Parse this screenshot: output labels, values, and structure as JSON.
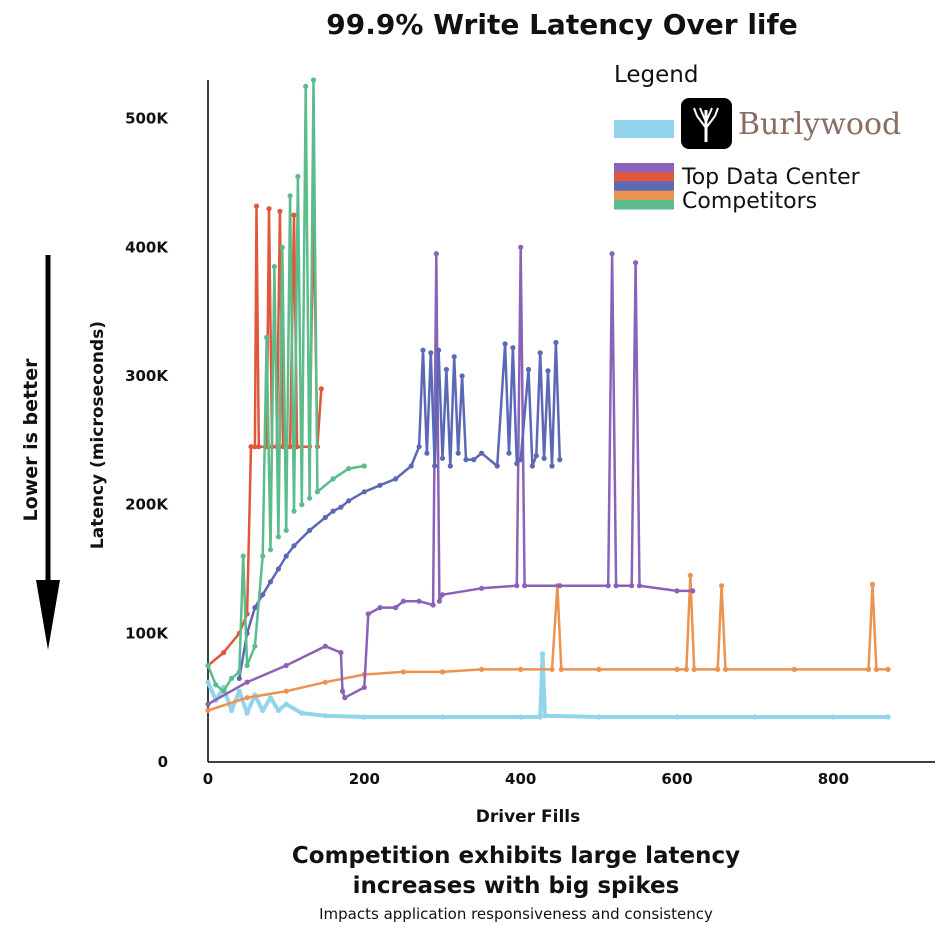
{
  "chart_data": {
    "type": "line",
    "title": "99.9% Write Latency Over life",
    "xlabel": "Driver Fills",
    "ylabel": "Latency (microseconds)",
    "side_label": "Lower is better",
    "xlim": [
      0,
      930
    ],
    "ylim": [
      0,
      530000
    ],
    "x_ticks": [
      0,
      200,
      400,
      600,
      800
    ],
    "x_tick_labels": [
      "0",
      "200",
      "400",
      "600",
      "800"
    ],
    "y_ticks": [
      0,
      100000,
      200000,
      300000,
      400000,
      500000
    ],
    "y_tick_labels": [
      "0",
      "100K",
      "200K",
      "300K",
      "400K",
      "500K"
    ],
    "legend": {
      "title": "Legend",
      "placement": "top-right",
      "brand_name": "Burlywood",
      "brand_color": "#92d4ec",
      "competitors_label_lines": [
        "Top Data Center",
        "Competitors"
      ],
      "competitor_colors": [
        "#8a62b8",
        "#e0573c",
        "#5a68b6",
        "#ec9350",
        "#5dbc8c"
      ]
    },
    "series": [
      {
        "color": "#92d4ec",
        "points": [
          [
            0,
            62000
          ],
          [
            10,
            48000
          ],
          [
            20,
            58000
          ],
          [
            30,
            40000
          ],
          [
            40,
            55000
          ],
          [
            50,
            38000
          ],
          [
            60,
            52000
          ],
          [
            70,
            40000
          ],
          [
            80,
            50000
          ],
          [
            90,
            40000
          ],
          [
            100,
            45000
          ],
          [
            120,
            38000
          ],
          [
            150,
            36000
          ],
          [
            200,
            35000
          ],
          [
            300,
            35000
          ],
          [
            400,
            35000
          ],
          [
            425,
            35000
          ],
          [
            428,
            84000
          ],
          [
            431,
            36000
          ],
          [
            500,
            35000
          ],
          [
            600,
            35000
          ],
          [
            700,
            35000
          ],
          [
            800,
            35000
          ],
          [
            870,
            35000
          ]
        ]
      },
      {
        "color": "#ec9350",
        "points": [
          [
            0,
            40000
          ],
          [
            50,
            50000
          ],
          [
            100,
            55000
          ],
          [
            150,
            62000
          ],
          [
            200,
            68000
          ],
          [
            250,
            70000
          ],
          [
            300,
            70000
          ],
          [
            350,
            72000
          ],
          [
            400,
            72000
          ],
          [
            440,
            72000
          ],
          [
            447,
            137000
          ],
          [
            452,
            72000
          ],
          [
            500,
            72000
          ],
          [
            600,
            72000
          ],
          [
            612,
            72000
          ],
          [
            617,
            145000
          ],
          [
            622,
            72000
          ],
          [
            652,
            72000
          ],
          [
            657,
            137000
          ],
          [
            662,
            72000
          ],
          [
            750,
            72000
          ],
          [
            845,
            72000
          ],
          [
            850,
            138000
          ],
          [
            855,
            72000
          ],
          [
            870,
            72000
          ]
        ]
      },
      {
        "color": "#8a62b8",
        "points": [
          [
            0,
            45000
          ],
          [
            50,
            62000
          ],
          [
            100,
            75000
          ],
          [
            150,
            90000
          ],
          [
            170,
            85000
          ],
          [
            172,
            55000
          ],
          [
            175,
            50000
          ],
          [
            200,
            58000
          ],
          [
            205,
            115000
          ],
          [
            220,
            120000
          ],
          [
            240,
            120000
          ],
          [
            250,
            125000
          ],
          [
            270,
            125000
          ],
          [
            288,
            122000
          ],
          [
            292,
            395000
          ],
          [
            296,
            125000
          ],
          [
            300,
            130000
          ],
          [
            350,
            135000
          ],
          [
            395,
            137000
          ],
          [
            400,
            400000
          ],
          [
            405,
            137000
          ],
          [
            450,
            137000
          ],
          [
            512,
            137000
          ],
          [
            517,
            395000
          ],
          [
            522,
            137000
          ],
          [
            542,
            137000
          ],
          [
            547,
            388000
          ],
          [
            552,
            137000
          ],
          [
            600,
            133000
          ],
          [
            620,
            133000
          ]
        ]
      },
      {
        "color": "#5a68b6",
        "points": [
          [
            40,
            65000
          ],
          [
            50,
            100000
          ],
          [
            60,
            120000
          ],
          [
            70,
            130000
          ],
          [
            80,
            140000
          ],
          [
            90,
            150000
          ],
          [
            100,
            160000
          ],
          [
            110,
            168000
          ],
          [
            130,
            180000
          ],
          [
            150,
            190000
          ],
          [
            160,
            195000
          ],
          [
            170,
            198000
          ],
          [
            180,
            203000
          ],
          [
            200,
            210000
          ],
          [
            220,
            215000
          ],
          [
            240,
            220000
          ],
          [
            260,
            230000
          ],
          [
            270,
            245000
          ],
          [
            275,
            320000
          ],
          [
            280,
            240000
          ],
          [
            285,
            318000
          ],
          [
            290,
            230000
          ],
          [
            295,
            320000
          ],
          [
            300,
            236000
          ],
          [
            305,
            305000
          ],
          [
            310,
            230000
          ],
          [
            315,
            315000
          ],
          [
            320,
            240000
          ],
          [
            325,
            300000
          ],
          [
            330,
            235000
          ],
          [
            340,
            235000
          ],
          [
            350,
            240000
          ],
          [
            370,
            230000
          ],
          [
            380,
            325000
          ],
          [
            385,
            240000
          ],
          [
            390,
            322000
          ],
          [
            395,
            232000
          ],
          [
            400,
            235000
          ],
          [
            410,
            305000
          ],
          [
            415,
            230000
          ],
          [
            420,
            238000
          ],
          [
            425,
            318000
          ],
          [
            430,
            236000
          ],
          [
            435,
            304000
          ],
          [
            440,
            230000
          ],
          [
            445,
            326000
          ],
          [
            450,
            235000
          ]
        ]
      },
      {
        "color": "#e0573c",
        "points": [
          [
            0,
            75000
          ],
          [
            20,
            85000
          ],
          [
            40,
            100000
          ],
          [
            50,
            115000
          ],
          [
            55,
            245000
          ],
          [
            60,
            245000
          ],
          [
            62,
            432000
          ],
          [
            65,
            245000
          ],
          [
            75,
            245000
          ],
          [
            78,
            430000
          ],
          [
            82,
            245000
          ],
          [
            88,
            245000
          ],
          [
            92,
            428000
          ],
          [
            96,
            245000
          ],
          [
            105,
            245000
          ],
          [
            110,
            425000
          ],
          [
            114,
            245000
          ],
          [
            130,
            245000
          ],
          [
            135,
            428000
          ],
          [
            140,
            245000
          ],
          [
            145,
            290000
          ]
        ]
      },
      {
        "color": "#5dbc8c",
        "points": [
          [
            0,
            75000
          ],
          [
            10,
            60000
          ],
          [
            20,
            55000
          ],
          [
            30,
            65000
          ],
          [
            40,
            70000
          ],
          [
            45,
            160000
          ],
          [
            50,
            75000
          ],
          [
            60,
            90000
          ],
          [
            70,
            160000
          ],
          [
            75,
            330000
          ],
          [
            80,
            165000
          ],
          [
            85,
            385000
          ],
          [
            90,
            175000
          ],
          [
            95,
            400000
          ],
          [
            100,
            180000
          ],
          [
            105,
            440000
          ],
          [
            110,
            195000
          ],
          [
            115,
            455000
          ],
          [
            120,
            200000
          ],
          [
            125,
            525000
          ],
          [
            130,
            205000
          ],
          [
            135,
            530000
          ],
          [
            140,
            210000
          ],
          [
            160,
            220000
          ],
          [
            180,
            228000
          ],
          [
            200,
            230000
          ]
        ]
      }
    ],
    "caption_lines": [
      "Competition exhibits large latency",
      "increases with big spikes"
    ],
    "subcaption": "Impacts application responsiveness and consistency"
  }
}
